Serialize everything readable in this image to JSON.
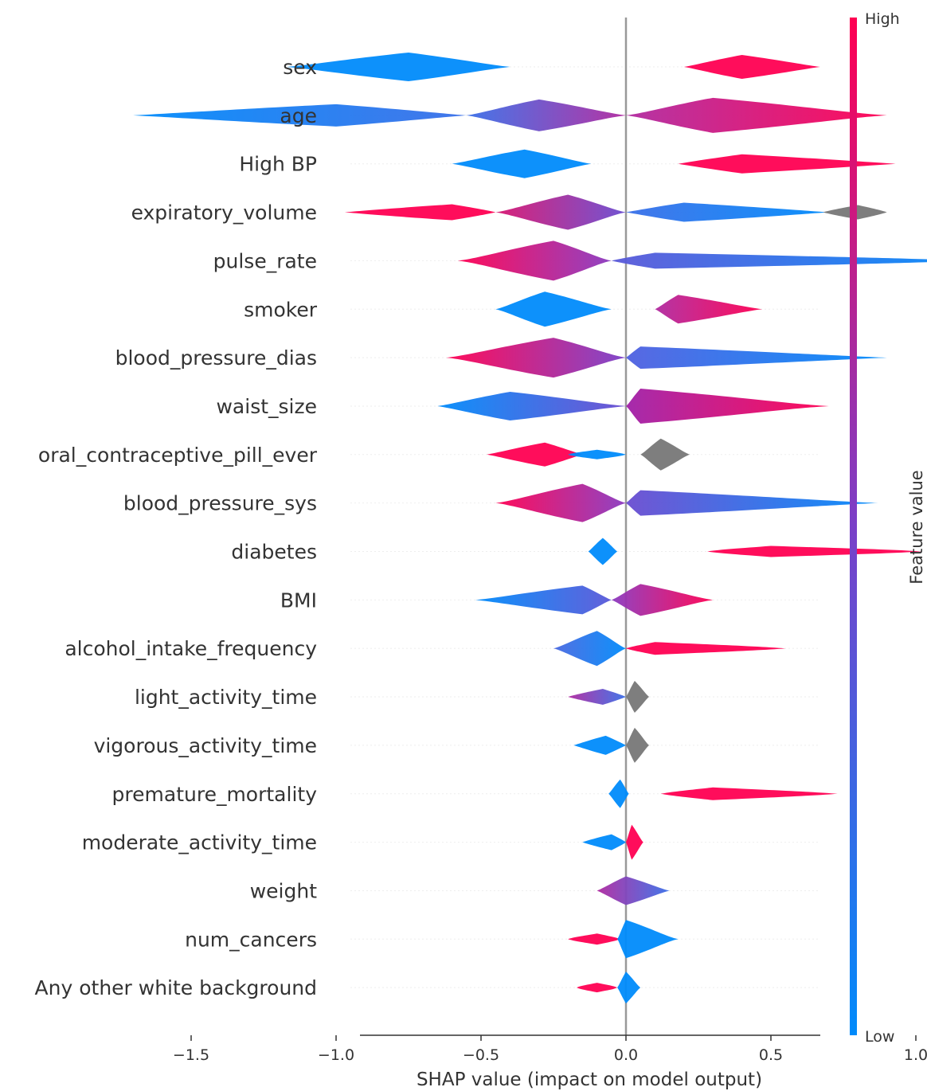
{
  "chart_data": {
    "type": "scatter",
    "subtype": "shap-beeswarm",
    "xlabel": "SHAP value (impact on model output)",
    "xlim": [
      -1.85,
      1.35
    ],
    "xticks": [
      -1.5,
      -1.0,
      -0.5,
      0.0,
      0.5,
      1.0
    ],
    "xtick_labels": [
      "−1.5",
      "−1.0",
      "−0.5",
      "0.0",
      "0.5",
      "1.0"
    ],
    "colorbar": {
      "title": "Feature value",
      "high_label": "High",
      "low_label": "Low",
      "high_color": "#ff0052",
      "low_color": "#008bfb",
      "missing_color": "#777777"
    },
    "features": [
      {
        "name": "sex",
        "segments": [
          {
            "from": -1.17,
            "to": -0.4,
            "peak": -0.75,
            "height": 18,
            "color": "low"
          },
          {
            "from": 0.2,
            "to": 0.67,
            "peak": 0.4,
            "height": 15,
            "color": "high"
          }
        ]
      },
      {
        "name": "age",
        "segments": [
          {
            "from": -1.7,
            "to": -0.55,
            "peak": -1.0,
            "height": 14,
            "gradient": [
              "#008bfb",
              "#3a6fe8"
            ]
          },
          {
            "from": -0.55,
            "to": 0.0,
            "peak": -0.3,
            "height": 20,
            "gradient": [
              "#3a6fe8",
              "#b02aa0"
            ]
          },
          {
            "from": 0.0,
            "to": 0.9,
            "peak": 0.3,
            "height": 22,
            "gradient": [
              "#b02aa0",
              "#ff0052"
            ]
          }
        ]
      },
      {
        "name": "High BP",
        "segments": [
          {
            "from": -0.6,
            "to": -0.12,
            "peak": -0.35,
            "height": 18,
            "color": "low"
          },
          {
            "from": 0.18,
            "to": 0.93,
            "peak": 0.4,
            "height": 12,
            "color": "high"
          }
        ]
      },
      {
        "name": "expiratory_volume",
        "segments": [
          {
            "from": -0.97,
            "to": -0.45,
            "peak": -0.6,
            "height": 10,
            "color": "high"
          },
          {
            "from": -0.45,
            "to": 0.0,
            "peak": -0.2,
            "height": 22,
            "gradient": [
              "#d81570",
              "#6a4cd0"
            ]
          },
          {
            "from": 0.0,
            "to": 0.7,
            "peak": 0.2,
            "height": 12,
            "gradient": [
              "#3a6fe8",
              "#008bfb"
            ]
          },
          {
            "from": 0.68,
            "to": 0.9,
            "peak": 0.8,
            "height": 9,
            "color": "missing"
          }
        ]
      },
      {
        "name": "pulse_rate",
        "segments": [
          {
            "from": -0.58,
            "to": -0.05,
            "peak": -0.25,
            "height": 25,
            "gradient": [
              "#ff0052",
              "#8a3ac0"
            ]
          },
          {
            "from": -0.05,
            "to": 1.22,
            "peak": 0.1,
            "height": 10,
            "gradient": [
              "#5a58d8",
              "#008bfb"
            ]
          }
        ]
      },
      {
        "name": "smoker",
        "segments": [
          {
            "from": -0.45,
            "to": -0.05,
            "peak": -0.28,
            "height": 22,
            "color": "low"
          },
          {
            "from": 0.1,
            "to": 0.47,
            "peak": 0.18,
            "height": 18,
            "gradient": [
              "#b02aa0",
              "#ff0052"
            ]
          }
        ]
      },
      {
        "name": "blood_pressure_dias",
        "segments": [
          {
            "from": -0.62,
            "to": 0.0,
            "peak": -0.25,
            "height": 25,
            "gradient": [
              "#ff0052",
              "#7a40c8"
            ]
          },
          {
            "from": 0.0,
            "to": 0.9,
            "peak": 0.05,
            "height": 14,
            "gradient": [
              "#5060e0",
              "#008bfb"
            ]
          }
        ]
      },
      {
        "name": "waist_size",
        "segments": [
          {
            "from": -0.65,
            "to": 0.0,
            "peak": -0.4,
            "height": 18,
            "gradient": [
              "#008bfb",
              "#6a4cd0"
            ]
          },
          {
            "from": 0.0,
            "to": 0.7,
            "peak": 0.05,
            "height": 22,
            "gradient": [
              "#a020a8",
              "#ff0052"
            ]
          }
        ]
      },
      {
        "name": "oral_contraceptive_pill_ever",
        "segments": [
          {
            "from": -0.48,
            "to": -0.15,
            "peak": -0.28,
            "height": 15,
            "color": "high"
          },
          {
            "from": -0.2,
            "to": 0.0,
            "peak": -0.1,
            "height": 6,
            "color": "low"
          },
          {
            "from": 0.05,
            "to": 0.22,
            "peak": 0.12,
            "height": 20,
            "color": "missing"
          }
        ]
      },
      {
        "name": "blood_pressure_sys",
        "segments": [
          {
            "from": -0.45,
            "to": 0.0,
            "peak": -0.15,
            "height": 24,
            "gradient": [
              "#ff0052",
              "#8a3ac0"
            ]
          },
          {
            "from": 0.0,
            "to": 0.87,
            "peak": 0.05,
            "height": 16,
            "gradient": [
              "#6a4cd0",
              "#008bfb"
            ]
          }
        ]
      },
      {
        "name": "diabetes",
        "segments": [
          {
            "from": -0.13,
            "to": -0.03,
            "peak": -0.08,
            "height": 17,
            "color": "low"
          },
          {
            "from": 0.28,
            "to": 1.02,
            "peak": 0.5,
            "height": 7,
            "color": "high"
          }
        ]
      },
      {
        "name": "BMI",
        "segments": [
          {
            "from": -0.52,
            "to": -0.05,
            "peak": -0.15,
            "height": 18,
            "gradient": [
              "#008bfb",
              "#5a58d8"
            ]
          },
          {
            "from": -0.05,
            "to": 0.3,
            "peak": 0.05,
            "height": 20,
            "gradient": [
              "#8a3ac0",
              "#ff0052"
            ]
          }
        ]
      },
      {
        "name": "alcohol_intake_frequency",
        "segments": [
          {
            "from": -0.25,
            "to": 0.0,
            "peak": -0.1,
            "height": 22,
            "gradient": [
              "#4a68e0",
              "#008bfb"
            ]
          },
          {
            "from": 0.0,
            "to": 0.55,
            "peak": 0.1,
            "height": 8,
            "color": "high"
          }
        ]
      },
      {
        "name": "light_activity_time",
        "segments": [
          {
            "from": -0.2,
            "to": 0.0,
            "peak": -0.08,
            "height": 10,
            "gradient": [
              "#b02aa0",
              "#3a6fe8"
            ]
          },
          {
            "from": 0.0,
            "to": 0.08,
            "peak": 0.03,
            "height": 20,
            "color": "missing"
          }
        ]
      },
      {
        "name": "vigorous_activity_time",
        "segments": [
          {
            "from": -0.18,
            "to": 0.0,
            "peak": -0.07,
            "height": 12,
            "color": "low"
          },
          {
            "from": 0.0,
            "to": 0.08,
            "peak": 0.03,
            "height": 22,
            "color": "missing"
          }
        ]
      },
      {
        "name": "premature_mortality",
        "segments": [
          {
            "from": -0.06,
            "to": 0.01,
            "peak": -0.02,
            "height": 18,
            "color": "low"
          },
          {
            "from": 0.12,
            "to": 0.73,
            "peak": 0.3,
            "height": 8,
            "color": "high"
          }
        ]
      },
      {
        "name": "moderate_activity_time",
        "segments": [
          {
            "from": -0.15,
            "to": 0.0,
            "peak": -0.05,
            "height": 10,
            "color": "low"
          },
          {
            "from": 0.0,
            "to": 0.06,
            "peak": 0.02,
            "height": 22,
            "color": "high"
          }
        ]
      },
      {
        "name": "weight",
        "segments": [
          {
            "from": -0.1,
            "to": 0.15,
            "peak": 0.0,
            "height": 18,
            "gradient": [
              "#b02aa0",
              "#3a6fe8"
            ]
          }
        ]
      },
      {
        "name": "num_cancers",
        "segments": [
          {
            "from": -0.2,
            "to": -0.02,
            "peak": -0.1,
            "height": 7,
            "color": "high"
          },
          {
            "from": -0.03,
            "to": 0.18,
            "peak": 0.0,
            "height": 24,
            "color": "low"
          }
        ]
      },
      {
        "name": "Any other white background",
        "segments": [
          {
            "from": -0.17,
            "to": -0.03,
            "peak": -0.1,
            "height": 6,
            "color": "high"
          },
          {
            "from": -0.03,
            "to": 0.05,
            "peak": 0.0,
            "height": 20,
            "color": "low"
          }
        ]
      }
    ]
  }
}
